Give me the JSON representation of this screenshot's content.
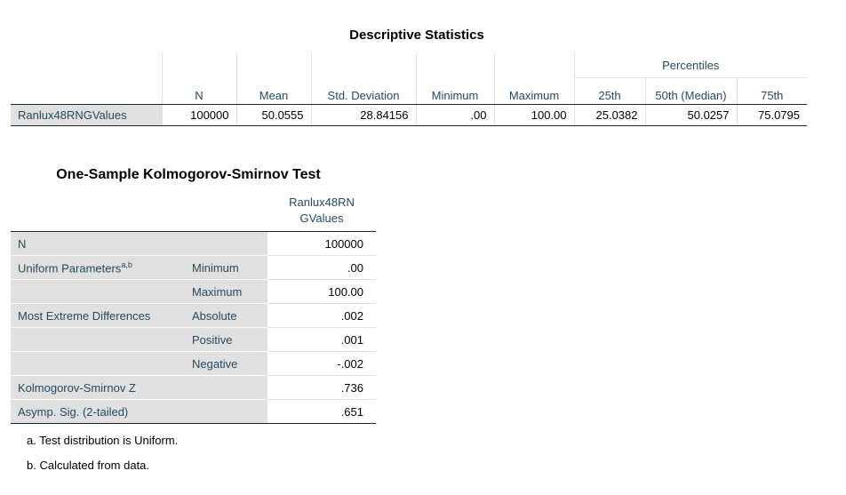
{
  "descriptive": {
    "title": "Descriptive Statistics",
    "percentiles_label": "Percentiles",
    "headers": [
      "N",
      "Mean",
      "Std. Deviation",
      "Minimum",
      "Maximum",
      "25th",
      "50th (Median)",
      "75th"
    ],
    "row": {
      "label": "Ranlux48RNGValues",
      "values": [
        "100000",
        "50.0555",
        "28.84156",
        ".00",
        "100.00",
        "25.0382",
        "50.0257",
        "75.0795"
      ]
    }
  },
  "ks_test": {
    "title": "One-Sample Kolmogorov-Smirnov Test",
    "column_header_line1": "Ranlux48RN",
    "column_header_line2": "GValues",
    "rows": [
      {
        "label": "N",
        "sub": "",
        "value": "100000"
      },
      {
        "label": "Uniform Parameters",
        "sup": "a,b",
        "sub": "Minimum",
        "value": ".00"
      },
      {
        "label": "",
        "sub": "Maximum",
        "value": "100.00"
      },
      {
        "label": "Most Extreme Differences",
        "sub": "Absolute",
        "value": ".002"
      },
      {
        "label": "",
        "sub": "Positive",
        "value": ".001"
      },
      {
        "label": "",
        "sub": "Negative",
        "value": "-.002"
      },
      {
        "label": "Kolmogorov-Smirnov Z",
        "sub": "",
        "value": ".736"
      },
      {
        "label": "Asymp. Sig. (2-tailed)",
        "sub": "",
        "value": ".651"
      }
    ],
    "footnotes": [
      "a. Test distribution is Uniform.",
      "b. Calculated from data."
    ]
  }
}
